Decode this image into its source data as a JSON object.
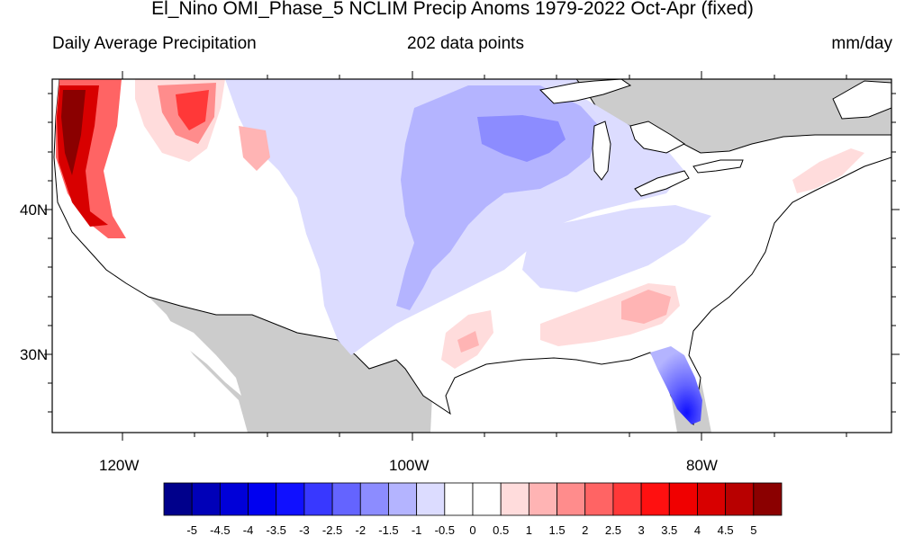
{
  "title": "El_Nino OMI_Phase_5 NCLIM Precip Anoms 1979-2022 Oct-Apr (fixed)",
  "subtitle_left": "Daily Average Precipitation",
  "subtitle_center": "202 data points",
  "subtitle_right": "mm/day",
  "lat_labels": [
    "40N",
    "30N"
  ],
  "lon_labels": [
    "120W",
    "100W",
    "80W"
  ],
  "colorbar": {
    "colors": [
      "#00008b",
      "#0000b8",
      "#0000d8",
      "#0000f0",
      "#1010ff",
      "#3838ff",
      "#6464ff",
      "#8c8cff",
      "#b4b4ff",
      "#dcdcff",
      "#ffffff",
      "#ffffff",
      "#ffdcdc",
      "#ffb4b4",
      "#ff8c8c",
      "#ff6464",
      "#ff3838",
      "#ff1010",
      "#f00000",
      "#d80000",
      "#b80000",
      "#8b0000"
    ],
    "labels": [
      "-5",
      "-4.5",
      "-4",
      "-3.5",
      "-3",
      "-2.5",
      "-2",
      "-1.5",
      "-1",
      "-0.5",
      "0",
      "0.5",
      "1",
      "1.5",
      "2",
      "2.5",
      "3",
      "3.5",
      "4",
      "4.5",
      "5"
    ]
  },
  "colors": {
    "land_background": "#cccccc",
    "water": "#ffffff",
    "frame": "#000000"
  }
}
